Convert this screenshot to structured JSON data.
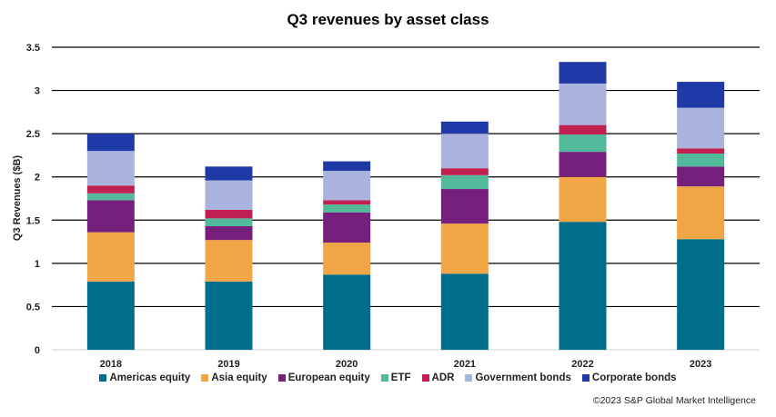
{
  "chart_data": {
    "type": "bar",
    "stacked": true,
    "title": "Q3 revenues by asset class",
    "xlabel": "",
    "ylabel": "Q3 Revenues ($B)",
    "ylim": [
      0,
      3.5
    ],
    "yticks": [
      "0",
      "0.5",
      "1",
      "1.5",
      "2",
      "2.5",
      "3",
      "3.5"
    ],
    "grid": true,
    "legend_position": "bottom",
    "categories": [
      "2018",
      "2019",
      "2020",
      "2021",
      "2022",
      "2023"
    ],
    "series": [
      {
        "name": "Americas equity",
        "color": "#006e8a",
        "values": [
          0.79,
          0.79,
          0.87,
          0.88,
          1.48,
          1.28
        ]
      },
      {
        "name": "Asia equity",
        "color": "#f0a646",
        "values": [
          0.57,
          0.48,
          0.37,
          0.58,
          0.52,
          0.61
        ]
      },
      {
        "name": "European equity",
        "color": "#761f7c",
        "values": [
          0.37,
          0.16,
          0.35,
          0.4,
          0.29,
          0.23
        ]
      },
      {
        "name": "ETF",
        "color": "#52b99a",
        "values": [
          0.08,
          0.09,
          0.09,
          0.16,
          0.2,
          0.15
        ]
      },
      {
        "name": "ADR",
        "color": "#c0204f",
        "values": [
          0.09,
          0.1,
          0.05,
          0.08,
          0.11,
          0.06
        ]
      },
      {
        "name": "Government bonds",
        "color": "#a9b3de",
        "values": [
          0.4,
          0.34,
          0.34,
          0.4,
          0.48,
          0.47
        ]
      },
      {
        "name": "Corporate bonds",
        "color": "#1f3aa6",
        "values": [
          0.2,
          0.16,
          0.11,
          0.14,
          0.25,
          0.3
        ]
      }
    ]
  },
  "credit": "©2023 S&P Global Market Intelligence"
}
